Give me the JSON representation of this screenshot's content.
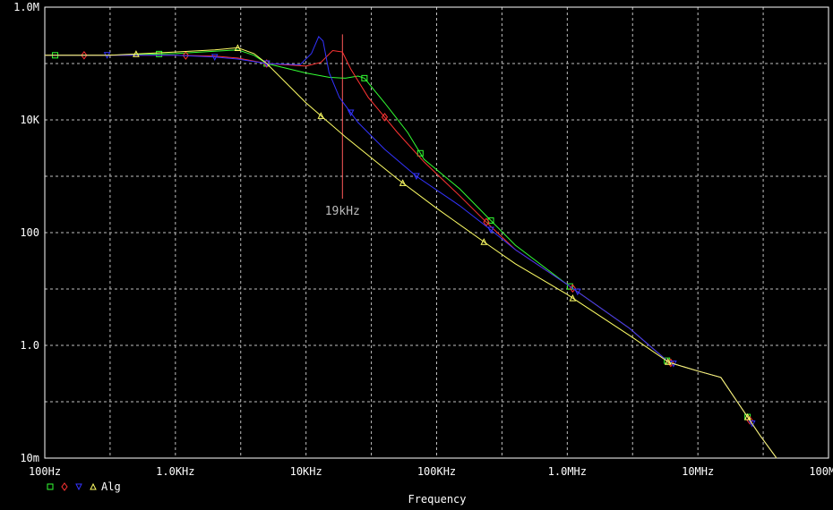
{
  "chart_data": {
    "type": "line",
    "x_scale": "log",
    "y_scale": "log",
    "xlabel": "Frequency",
    "xlim": [
      100,
      100000000
    ],
    "ylim": [
      0.01,
      1000000
    ],
    "grid": true,
    "x_ticks": [
      {
        "value": 100,
        "label": "100Hz"
      },
      {
        "value": 1000,
        "label": "1.0KHz"
      },
      {
        "value": 10000,
        "label": "10KHz"
      },
      {
        "value": 100000,
        "label": "100KHz"
      },
      {
        "value": 1000000,
        "label": "1.0MHz"
      },
      {
        "value": 10000000,
        "label": "10MHz"
      },
      {
        "value": 100000000,
        "label": "100MHz"
      }
    ],
    "y_ticks": [
      {
        "value": 0.01,
        "label": "10m"
      },
      {
        "value": 1,
        "label": "1.0"
      },
      {
        "value": 100,
        "label": "100"
      },
      {
        "value": 10000,
        "label": "10K"
      },
      {
        "value": 1000000,
        "label": "1.0M"
      }
    ],
    "legend": {
      "placement": "bottom-left",
      "text": "Alg"
    },
    "annotation": {
      "label": "19kHz",
      "x": 19000,
      "y_top": 330000,
      "y_bottom": 400,
      "color": "#ff5a5a"
    },
    "series": [
      {
        "color": "#33ff33",
        "marker": "square",
        "points": [
          [
            100,
            140000
          ],
          [
            300,
            140000
          ],
          [
            1000,
            150000
          ],
          [
            2000,
            165000
          ],
          [
            3000,
            175000
          ],
          [
            4000,
            140000
          ],
          [
            5000,
            100000
          ],
          [
            10000,
            68000
          ],
          [
            15000,
            57000
          ],
          [
            20000,
            55000
          ],
          [
            25000,
            60000
          ],
          [
            28000,
            55000
          ],
          [
            40000,
            20000
          ],
          [
            60000,
            6000
          ],
          [
            80000,
            2000
          ],
          [
            150000,
            600
          ],
          [
            250000,
            180
          ],
          [
            400000,
            60
          ],
          [
            1000000,
            12
          ],
          [
            3000000,
            2
          ],
          [
            6000000,
            0.5
          ],
          [
            10000000,
            0.35
          ],
          [
            15000000,
            0.27
          ],
          [
            20000000,
            0.1
          ],
          [
            30000000,
            0.025
          ],
          [
            40000000,
            0.01
          ]
        ],
        "markers_at": [
          120,
          750,
          5000,
          28000,
          75000,
          260000,
          1050000,
          5800000,
          24000000
        ]
      },
      {
        "color": "#ff3333",
        "marker": "diamond",
        "points": [
          [
            100,
            140000
          ],
          [
            300,
            140000
          ],
          [
            1000,
            140000
          ],
          [
            2000,
            135000
          ],
          [
            3000,
            125000
          ],
          [
            5000,
            100000
          ],
          [
            10000,
            90000
          ],
          [
            13000,
            105000
          ],
          [
            16000,
            170000
          ],
          [
            19000,
            160000
          ],
          [
            22000,
            80000
          ],
          [
            30000,
            25000
          ],
          [
            50000,
            6000
          ],
          [
            80000,
            1800
          ],
          [
            150000,
            450
          ],
          [
            250000,
            140
          ],
          [
            400000,
            50
          ],
          [
            1000000,
            12
          ],
          [
            3000000,
            2
          ],
          [
            6000000,
            0.5
          ],
          [
            10000000,
            0.35
          ],
          [
            15000000,
            0.27
          ],
          [
            20000000,
            0.1
          ],
          [
            30000000,
            0.025
          ],
          [
            40000000,
            0.01
          ]
        ],
        "markers_at": [
          200,
          1200,
          5000,
          40000,
          240000,
          1100000,
          6200000,
          25000000
        ]
      },
      {
        "color": "#3333ff",
        "marker": "triangle-down",
        "points": [
          [
            100,
            140000
          ],
          [
            300,
            140000
          ],
          [
            1000,
            140000
          ],
          [
            2000,
            130000
          ],
          [
            3000,
            120000
          ],
          [
            5000,
            100000
          ],
          [
            9000,
            95000
          ],
          [
            11000,
            150000
          ],
          [
            12500,
            300000
          ],
          [
            13500,
            250000
          ],
          [
            15000,
            70000
          ],
          [
            18000,
            25000
          ],
          [
            25000,
            9000
          ],
          [
            40000,
            3000
          ],
          [
            70000,
            1000
          ],
          [
            150000,
            300
          ],
          [
            250000,
            120
          ],
          [
            400000,
            50
          ],
          [
            1000000,
            12
          ],
          [
            3000000,
            2
          ],
          [
            6000000,
            0.5
          ],
          [
            10000000,
            0.35
          ],
          [
            15000000,
            0.27
          ],
          [
            20000000,
            0.1
          ],
          [
            30000000,
            0.025
          ],
          [
            40000000,
            0.01
          ]
        ],
        "markers_at": [
          300,
          2000,
          5000,
          22000,
          70000,
          260000,
          1200000,
          6500000,
          26000000
        ]
      },
      {
        "color": "#ffff66",
        "marker": "triangle-up",
        "points": [
          [
            100,
            140000
          ],
          [
            300,
            140000
          ],
          [
            1000,
            160000
          ],
          [
            2000,
            175000
          ],
          [
            3000,
            190000
          ],
          [
            4000,
            150000
          ],
          [
            5000,
            100000
          ],
          [
            10000,
            20000
          ],
          [
            20000,
            5000
          ],
          [
            50000,
            900
          ],
          [
            100000,
            270
          ],
          [
            250000,
            60
          ],
          [
            400000,
            28
          ],
          [
            1000000,
            8
          ],
          [
            3000000,
            1.5
          ],
          [
            6000000,
            0.5
          ],
          [
            10000000,
            0.35
          ],
          [
            15000000,
            0.27
          ],
          [
            20000000,
            0.1
          ],
          [
            30000000,
            0.025
          ],
          [
            40000000,
            0.01
          ]
        ],
        "markers_at": [
          500,
          3000,
          13000,
          55000,
          230000,
          1100000,
          5900000,
          24000000
        ]
      }
    ]
  }
}
